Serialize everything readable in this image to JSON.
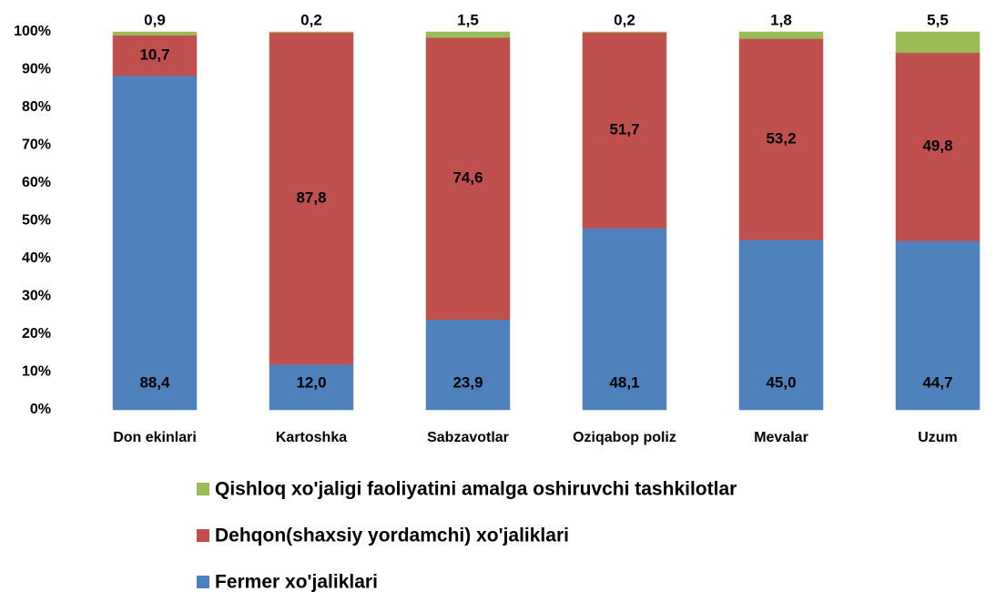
{
  "chart_data": {
    "type": "stacked_bar",
    "categories": [
      "Don ekinlari",
      "Kartoshka",
      "Sabzavotlar",
      "Oziqabop poliz",
      "Mevalar",
      "Uzum"
    ],
    "series": [
      {
        "name": "Fermer xo'jaliklari",
        "color": "#4f81bd",
        "values": [
          88.4,
          12.0,
          23.9,
          48.1,
          45.0,
          44.7
        ],
        "value_labels": [
          "88,4",
          "12,0",
          "23,9",
          "48,1",
          "45,0",
          "44,7"
        ]
      },
      {
        "name": "Dehqon(shaxsiy yordamchi) xo'jaliklari",
        "color": "#c0504d",
        "values": [
          10.7,
          87.8,
          74.6,
          51.7,
          53.2,
          49.8
        ],
        "value_labels": [
          "10,7",
          "87,8",
          "74,6",
          "51,7",
          "53,2",
          "49,8"
        ]
      },
      {
        "name": "Qishloq xo'jaligi faoliyatini amalga oshiruvchi tashkilotlar",
        "color": "#9bbb59",
        "values": [
          0.9,
          0.2,
          1.5,
          0.2,
          1.8,
          5.5
        ],
        "value_labels": [
          "0,9",
          "0,2",
          "1,5",
          "0,2",
          "1,8",
          "5,5"
        ]
      }
    ],
    "ylim": [
      0,
      100
    ],
    "yticks": [
      {
        "value": 0,
        "label": "0%"
      },
      {
        "value": 10,
        "label": "10%"
      },
      {
        "value": 20,
        "label": "20%"
      },
      {
        "value": 30,
        "label": "30%"
      },
      {
        "value": 40,
        "label": "40%"
      },
      {
        "value": 50,
        "label": "50%"
      },
      {
        "value": 60,
        "label": "60%"
      },
      {
        "value": 70,
        "label": "70%"
      },
      {
        "value": 80,
        "label": "80%"
      },
      {
        "value": 90,
        "label": "90%"
      },
      {
        "value": 100,
        "label": "100%"
      }
    ],
    "grid": false
  }
}
